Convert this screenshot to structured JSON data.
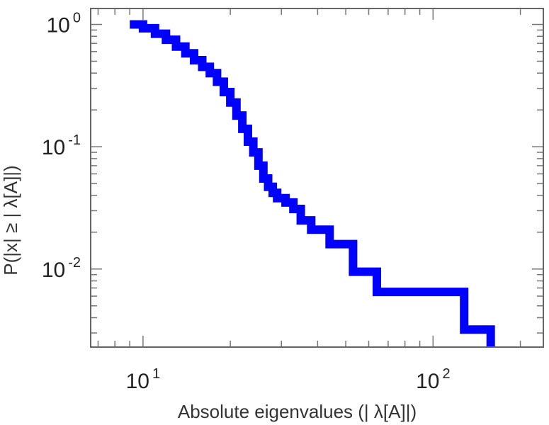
{
  "chart_data": {
    "type": "line",
    "xlabel": "Absolute eigenvalues (|     λ[A]|)",
    "ylabel": "P(|x|  ≥ | λ[A]|)",
    "x_scale": "log",
    "y_scale": "log",
    "xlim": [
      6.6,
      240
    ],
    "ylim": [
      0.0023,
      1.35
    ],
    "x_ticks": [
      {
        "value": 10,
        "base": "10",
        "exp": "1"
      },
      {
        "value": 100,
        "base": "10",
        "exp": "2"
      }
    ],
    "y_ticks": [
      {
        "value": 1,
        "base": "10",
        "exp": "0"
      },
      {
        "value": 0.1,
        "base": "10",
        "exp": "-1"
      },
      {
        "value": 0.01,
        "base": "10",
        "exp": "-2"
      }
    ],
    "grid": false,
    "line_color": "#0000ff",
    "series": [
      {
        "step": true,
        "x": [
          9,
          10,
          11,
          12,
          13,
          14,
          15,
          16,
          17,
          18,
          19,
          20,
          21,
          22,
          23,
          24,
          25,
          26,
          27,
          28,
          29,
          31,
          33,
          35,
          38,
          44,
          53,
          64,
          128,
          158
        ],
        "y": [
          1.0,
          0.93,
          0.84,
          0.75,
          0.66,
          0.58,
          0.51,
          0.45,
          0.4,
          0.34,
          0.28,
          0.23,
          0.18,
          0.14,
          0.11,
          0.09,
          0.07,
          0.055,
          0.047,
          0.042,
          0.038,
          0.035,
          0.031,
          0.025,
          0.021,
          0.016,
          0.0095,
          0.0065,
          0.0032,
          0.0023
        ]
      }
    ]
  }
}
